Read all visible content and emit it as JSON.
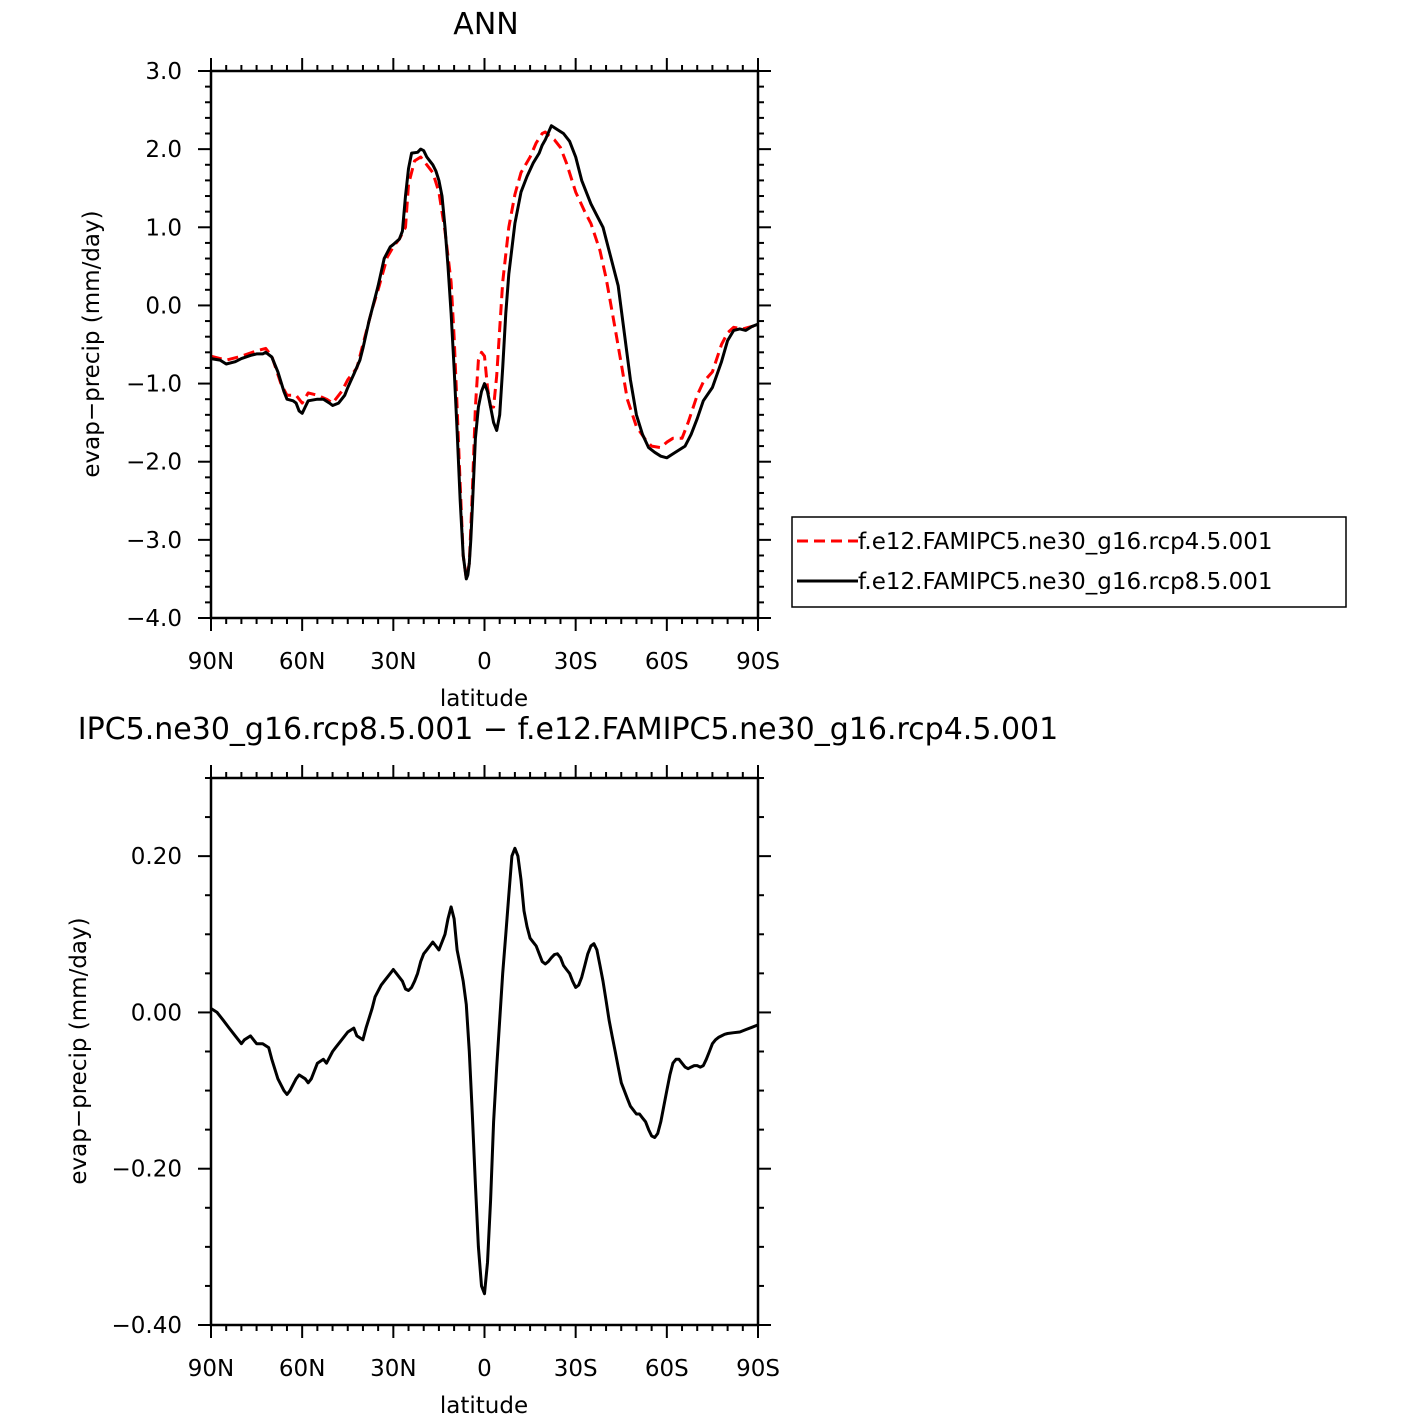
{
  "chart_data": [
    {
      "type": "line",
      "title": "ANN",
      "xlabel": "latitude",
      "ylabel": "evap−precip (mm/day)",
      "xlim": [
        90,
        -90
      ],
      "ylim": [
        -4.0,
        3.0
      ],
      "xticks": [
        90,
        60,
        30,
        0,
        -30,
        -60,
        -90
      ],
      "xtick_labels": [
        "90N",
        "60N",
        "30N",
        "0",
        "30S",
        "60S",
        "90S"
      ],
      "yticks": [
        -4.0,
        -3.0,
        -2.0,
        -1.0,
        0.0,
        1.0,
        2.0,
        3.0
      ],
      "ytick_labels": [
        "−4.0",
        "−3.0",
        "−2.0",
        "−1.0",
        "0.0",
        "1.0",
        "2.0",
        "3.0"
      ],
      "legend_position": "right",
      "series": [
        {
          "name": "f.e12.FAMIPC5.ne30_g16.rcp4.5.001",
          "color": "#ff0000",
          "dash": "dashed",
          "x": [
            90,
            85,
            80,
            75,
            72,
            70,
            67,
            65,
            62,
            60,
            58,
            55,
            52,
            50,
            47,
            45,
            42,
            40,
            37,
            35,
            32,
            30,
            28,
            26,
            25,
            23,
            21,
            19,
            17,
            15,
            13,
            11,
            10,
            9,
            8,
            7,
            6,
            5,
            4,
            3,
            2,
            1,
            0,
            -1,
            -2,
            -3,
            -4,
            -5,
            -6,
            -8,
            -10,
            -12,
            -15,
            -17,
            -19,
            -20,
            -21,
            -23,
            -25,
            -27,
            -30,
            -33,
            -35,
            -38,
            -40,
            -43,
            -45,
            -47,
            -50,
            -53,
            -55,
            -58,
            -60,
            -62,
            -65,
            -67,
            -70,
            -72,
            -75,
            -78,
            -80,
            -82,
            -85,
            -88,
            -90
          ],
          "y": [
            -0.65,
            -0.7,
            -0.65,
            -0.58,
            -0.55,
            -0.65,
            -1.0,
            -1.15,
            -1.15,
            -1.25,
            -1.12,
            -1.15,
            -1.2,
            -1.25,
            -1.1,
            -0.95,
            -0.8,
            -0.5,
            -0.05,
            0.2,
            0.62,
            0.75,
            0.85,
            1.0,
            1.55,
            1.85,
            1.9,
            1.8,
            1.7,
            1.45,
            0.95,
            0.3,
            -0.4,
            -1.3,
            -2.3,
            -3.2,
            -3.5,
            -3.3,
            -2.4,
            -1.3,
            -0.7,
            -0.6,
            -0.65,
            -1.05,
            -1.3,
            -1.3,
            -0.9,
            -0.3,
            0.3,
            1.0,
            1.42,
            1.7,
            1.9,
            2.08,
            2.2,
            2.22,
            2.18,
            2.12,
            2.02,
            1.82,
            1.45,
            1.2,
            1.05,
            0.7,
            0.35,
            -0.3,
            -0.75,
            -1.2,
            -1.55,
            -1.72,
            -1.8,
            -1.82,
            -1.75,
            -1.7,
            -1.7,
            -1.5,
            -1.15,
            -0.98,
            -0.85,
            -0.5,
            -0.35,
            -0.28,
            -0.3,
            -0.27,
            -0.25
          ]
        },
        {
          "name": "f.e12.FAMIPC5.ne30_g16.rcp8.5.001",
          "color": "#000000",
          "dash": "solid",
          "x": [
            90,
            87,
            85,
            82,
            80,
            77,
            75,
            73,
            72,
            70,
            68,
            66,
            65,
            63,
            62,
            61,
            60,
            59,
            58,
            55,
            53,
            51,
            50,
            48,
            46,
            45,
            43,
            41,
            40,
            38,
            36,
            35,
            33,
            31,
            30,
            28,
            27,
            26,
            25,
            24,
            22,
            21,
            20,
            19,
            18,
            17,
            16,
            15,
            14,
            13,
            12,
            11,
            10,
            9,
            8,
            7,
            6,
            5.5,
            5,
            4.5,
            4,
            3,
            2,
            1,
            0,
            -1,
            -2,
            -3,
            -4,
            -5,
            -6,
            -7,
            -8,
            -10,
            -12,
            -14,
            -16,
            -18,
            -19,
            -20,
            -22,
            -24,
            -26,
            -28,
            -30,
            -32,
            -35,
            -37,
            -39,
            -41,
            -44,
            -46,
            -48,
            -50,
            -52,
            -54,
            -56,
            -58,
            -60,
            -62,
            -64,
            -66,
            -68,
            -70,
            -72,
            -75,
            -78,
            -80,
            -82,
            -84,
            -86,
            -88,
            -90
          ],
          "y": [
            -0.68,
            -0.7,
            -0.75,
            -0.72,
            -0.68,
            -0.64,
            -0.62,
            -0.62,
            -0.6,
            -0.66,
            -0.85,
            -1.1,
            -1.2,
            -1.22,
            -1.25,
            -1.35,
            -1.38,
            -1.3,
            -1.22,
            -1.2,
            -1.2,
            -1.25,
            -1.28,
            -1.25,
            -1.15,
            -1.05,
            -0.88,
            -0.7,
            -0.55,
            -0.2,
            0.1,
            0.25,
            0.6,
            0.75,
            0.78,
            0.85,
            0.95,
            1.4,
            1.75,
            1.95,
            1.96,
            2.0,
            1.98,
            1.9,
            1.85,
            1.8,
            1.72,
            1.6,
            1.4,
            1.0,
            0.5,
            -0.1,
            -0.8,
            -1.6,
            -2.5,
            -3.2,
            -3.5,
            -3.45,
            -3.3,
            -3.0,
            -2.6,
            -1.7,
            -1.3,
            -1.1,
            -1.0,
            -1.1,
            -1.3,
            -1.5,
            -1.6,
            -1.4,
            -0.8,
            -0.1,
            0.4,
            1.05,
            1.45,
            1.65,
            1.82,
            1.95,
            2.05,
            2.12,
            2.3,
            2.25,
            2.2,
            2.1,
            1.9,
            1.6,
            1.3,
            1.15,
            1.0,
            0.7,
            0.25,
            -0.35,
            -0.95,
            -1.4,
            -1.65,
            -1.82,
            -1.88,
            -1.93,
            -1.95,
            -1.9,
            -1.85,
            -1.8,
            -1.65,
            -1.45,
            -1.22,
            -1.05,
            -0.72,
            -0.45,
            -0.32,
            -0.3,
            -0.32,
            -0.27,
            -0.24
          ]
        }
      ]
    },
    {
      "type": "line",
      "title": "IPC5.ne30_g16.rcp8.5.001 − f.e12.FAMIPC5.ne30_g16.rcp4.5.001",
      "xlabel": "latitude",
      "ylabel": "evap−precip (mm/day)",
      "xlim": [
        90,
        -90
      ],
      "ylim": [
        -0.4,
        0.3
      ],
      "xticks": [
        90,
        60,
        30,
        0,
        -30,
        -60,
        -90
      ],
      "xtick_labels": [
        "90N",
        "60N",
        "30N",
        "0",
        "30S",
        "60S",
        "90S"
      ],
      "yticks": [
        -0.4,
        -0.2,
        0.0,
        0.2
      ],
      "ytick_labels": [
        "−0.40",
        "−0.20",
        "0.00",
        "0.20"
      ],
      "series": [
        {
          "color": "#000000",
          "dash": "solid",
          "x": [
            90,
            88,
            86,
            84,
            82,
            80,
            79,
            77,
            75,
            73,
            71,
            70,
            68,
            66,
            65,
            64,
            62,
            61,
            59,
            58,
            57,
            55,
            53,
            52,
            50,
            49,
            47,
            45,
            43,
            42,
            40,
            39,
            37,
            36,
            34,
            33,
            31,
            30,
            29,
            28,
            27,
            26,
            25,
            24,
            23,
            22,
            21,
            20,
            19,
            18,
            17,
            16,
            15,
            14,
            13,
            12,
            11,
            10,
            9,
            8,
            7,
            6,
            5,
            4,
            3,
            2,
            1,
            0,
            -1,
            -2,
            -3,
            -4,
            -5,
            -6,
            -7,
            -8,
            -9,
            -10,
            -11,
            -12,
            -13,
            -14,
            -15,
            -16,
            -17,
            -18,
            -19,
            -20,
            -21,
            -22,
            -23,
            -24,
            -25,
            -26,
            -27,
            -28,
            -29,
            -30,
            -31,
            -32,
            -33,
            -34,
            -35,
            -36,
            -37,
            -38,
            -39,
            -40,
            -41,
            -42,
            -43,
            -44,
            -45,
            -46,
            -47,
            -48,
            -49,
            -50,
            -51,
            -52,
            -53,
            -54,
            -55,
            -56,
            -57,
            -58,
            -59,
            -60,
            -61,
            -62,
            -63,
            -64,
            -65,
            -66,
            -67,
            -68,
            -69,
            -70,
            -71,
            -72,
            -73,
            -74,
            -75,
            -76,
            -77,
            -78,
            -79,
            -80,
            -82,
            -84,
            -86,
            -88,
            -90
          ],
          "y": [
            0.005,
            0.0,
            -0.01,
            -0.02,
            -0.03,
            -0.04,
            -0.035,
            -0.03,
            -0.04,
            -0.04,
            -0.045,
            -0.06,
            -0.085,
            -0.1,
            -0.105,
            -0.1,
            -0.085,
            -0.08,
            -0.085,
            -0.09,
            -0.085,
            -0.065,
            -0.06,
            -0.065,
            -0.05,
            -0.045,
            -0.035,
            -0.025,
            -0.02,
            -0.03,
            -0.035,
            -0.02,
            0.005,
            0.02,
            0.035,
            0.04,
            0.05,
            0.055,
            0.05,
            0.045,
            0.04,
            0.03,
            0.028,
            0.032,
            0.04,
            0.05,
            0.065,
            0.075,
            0.08,
            0.085,
            0.09,
            0.085,
            0.08,
            0.09,
            0.1,
            0.12,
            0.135,
            0.12,
            0.08,
            0.06,
            0.04,
            0.01,
            -0.05,
            -0.13,
            -0.22,
            -0.3,
            -0.35,
            -0.36,
            -0.32,
            -0.24,
            -0.14,
            -0.07,
            -0.01,
            0.05,
            0.1,
            0.15,
            0.2,
            0.21,
            0.2,
            0.17,
            0.13,
            0.11,
            0.095,
            0.09,
            0.085,
            0.075,
            0.065,
            0.062,
            0.065,
            0.07,
            0.074,
            0.075,
            0.07,
            0.06,
            0.055,
            0.05,
            0.04,
            0.032,
            0.035,
            0.045,
            0.06,
            0.075,
            0.085,
            0.088,
            0.08,
            0.06,
            0.04,
            0.015,
            -0.01,
            -0.03,
            -0.05,
            -0.07,
            -0.09,
            -0.1,
            -0.11,
            -0.12,
            -0.125,
            -0.13,
            -0.13,
            -0.135,
            -0.14,
            -0.15,
            -0.158,
            -0.16,
            -0.155,
            -0.14,
            -0.12,
            -0.1,
            -0.08,
            -0.065,
            -0.06,
            -0.06,
            -0.065,
            -0.07,
            -0.072,
            -0.07,
            -0.068,
            -0.068,
            -0.07,
            -0.068,
            -0.06,
            -0.05,
            -0.04,
            -0.035,
            -0.032,
            -0.03,
            -0.028,
            -0.027,
            -0.026,
            -0.025,
            -0.022,
            -0.019,
            -0.016
          ]
        }
      ]
    }
  ]
}
